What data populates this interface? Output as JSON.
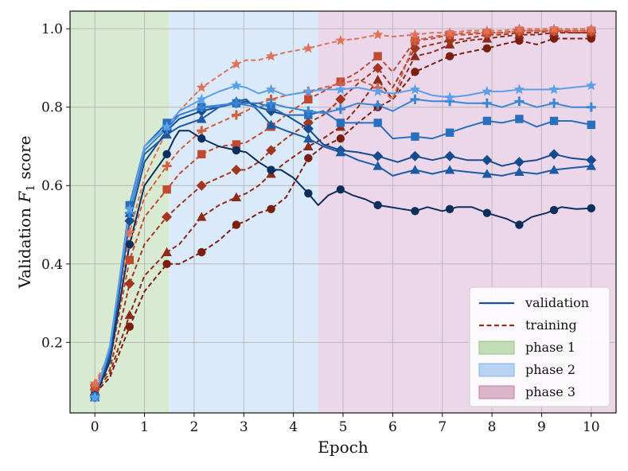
{
  "chart_data": {
    "type": "line",
    "xlabel": "Epoch",
    "ylabel_prefix": "Validation ",
    "ylabel_symbol": "F",
    "ylabel_subscript": "1",
    "ylabel_suffix": " score",
    "xlim": [
      -0.5,
      10.5
    ],
    "ylim": [
      0.02,
      1.045
    ],
    "xticks": [
      0,
      1,
      2,
      3,
      4,
      5,
      6,
      7,
      8,
      9,
      10
    ],
    "xtick_labels": [
      "0",
      "1",
      "2",
      "3",
      "4",
      "5",
      "6",
      "7",
      "8",
      "9",
      "10"
    ],
    "yticks": [
      0.2,
      0.4,
      0.6,
      0.8,
      1.0
    ],
    "ytick_labels": [
      "0.2",
      "0.4",
      "0.6",
      "0.8",
      "1.0"
    ],
    "grid": true,
    "legend_position": "lower-right",
    "phases": [
      {
        "label": "phase 1",
        "x_start": -0.5,
        "x_end": 1.5,
        "fill": "#d9ead3",
        "edge": "#93c47d"
      },
      {
        "label": "phase 2",
        "x_start": 1.5,
        "x_end": 4.5,
        "fill": "#dbeafb",
        "edge": "#6fa8dc"
      },
      {
        "label": "phase 3",
        "x_start": 4.5,
        "x_end": 10.5,
        "fill": "#ecd7ea",
        "edge": "#c27ba0"
      }
    ],
    "legend": [
      {
        "label": "validation",
        "style": "solid",
        "color": "#1f4e8c"
      },
      {
        "label": "training",
        "style": "dashed",
        "color": "#9c2f1f"
      },
      {
        "label": "phase 1",
        "style": "patch",
        "color": "#93c47d"
      },
      {
        "label": "phase 2",
        "style": "patch",
        "color": "#7fb3e8"
      },
      {
        "label": "phase 3",
        "style": "patch",
        "color": "#c27ba0"
      }
    ],
    "series": [
      {
        "kind": "validation",
        "marker": "circle",
        "color": "#0b2e5a",
        "x": [
          0,
          0.3,
          0.7,
          1.0,
          1.45,
          1.6,
          1.7,
          1.9,
          2.15,
          2.5,
          2.85,
          3.05,
          3.3,
          3.55,
          3.75,
          4.0,
          4.3,
          4.5,
          4.7,
          4.95,
          5.2,
          5.45,
          5.7,
          5.95,
          6.2,
          6.45,
          6.7,
          7.0,
          7.3,
          7.6,
          7.9,
          8.3,
          8.55,
          8.8,
          9.1,
          9.4,
          9.7,
          10.0
        ],
        "y": [
          0.06,
          0.15,
          0.45,
          0.6,
          0.68,
          0.72,
          0.74,
          0.74,
          0.72,
          0.7,
          0.69,
          0.685,
          0.66,
          0.64,
          0.64,
          0.62,
          0.58,
          0.55,
          0.575,
          0.59,
          0.575,
          0.565,
          0.55,
          0.545,
          0.54,
          0.535,
          0.545,
          0.535,
          0.545,
          0.545,
          0.53,
          0.515,
          0.5,
          0.52,
          0.53,
          0.545,
          0.54,
          0.542
        ],
        "marker_x": [
          0,
          0.7,
          1.45,
          2.15,
          2.85,
          3.55,
          4.3,
          4.95,
          5.7,
          6.45,
          7.15,
          7.9,
          8.55,
          9.25,
          10.0
        ]
      },
      {
        "kind": "validation",
        "marker": "diamond",
        "color": "#164c8f",
        "x": [
          0,
          0.3,
          0.7,
          1.0,
          1.45,
          1.7,
          2.15,
          2.5,
          2.85,
          3.05,
          3.3,
          3.55,
          3.85,
          4.3,
          4.6,
          4.95,
          5.3,
          5.7,
          6.1,
          6.45,
          6.8,
          7.15,
          7.5,
          7.9,
          8.2,
          8.55,
          8.9,
          9.25,
          9.6,
          10.0
        ],
        "y": [
          0.065,
          0.16,
          0.51,
          0.66,
          0.74,
          0.77,
          0.79,
          0.8,
          0.81,
          0.815,
          0.8,
          0.79,
          0.78,
          0.745,
          0.705,
          0.69,
          0.685,
          0.675,
          0.66,
          0.675,
          0.665,
          0.675,
          0.665,
          0.665,
          0.65,
          0.66,
          0.665,
          0.68,
          0.67,
          0.665
        ],
        "marker_x": [
          0,
          0.7,
          1.45,
          2.15,
          2.85,
          3.55,
          4.3,
          4.95,
          5.7,
          6.45,
          7.15,
          7.9,
          8.55,
          9.25,
          10.0
        ]
      },
      {
        "kind": "validation",
        "marker": "triangle",
        "color": "#1d5aa6",
        "x": [
          0,
          0.3,
          0.7,
          1.0,
          1.45,
          1.7,
          2.15,
          2.5,
          2.85,
          3.05,
          3.3,
          3.55,
          3.85,
          4.3,
          4.6,
          4.95,
          5.3,
          5.7,
          6.0,
          6.45,
          6.8,
          7.15,
          7.5,
          7.9,
          8.2,
          8.55,
          8.9,
          9.25,
          9.6,
          10.0
        ],
        "y": [
          0.06,
          0.17,
          0.53,
          0.68,
          0.73,
          0.75,
          0.77,
          0.8,
          0.815,
          0.82,
          0.79,
          0.755,
          0.74,
          0.72,
          0.7,
          0.685,
          0.665,
          0.65,
          0.625,
          0.64,
          0.63,
          0.64,
          0.635,
          0.63,
          0.625,
          0.635,
          0.63,
          0.64,
          0.645,
          0.65
        ],
        "marker_x": [
          0,
          0.7,
          1.45,
          2.15,
          2.85,
          3.55,
          4.3,
          4.95,
          5.7,
          6.45,
          7.15,
          7.9,
          8.55,
          9.25,
          10.0
        ]
      },
      {
        "kind": "validation",
        "marker": "square",
        "color": "#2a6ebe",
        "x": [
          0,
          0.3,
          0.7,
          1.0,
          1.45,
          1.7,
          2.15,
          2.5,
          2.85,
          3.05,
          3.3,
          3.55,
          3.85,
          4.3,
          4.6,
          4.95,
          5.3,
          5.7,
          6.0,
          6.45,
          6.8,
          7.15,
          7.5,
          7.9,
          8.2,
          8.55,
          8.9,
          9.25,
          9.6,
          10.0
        ],
        "y": [
          0.06,
          0.18,
          0.55,
          0.7,
          0.76,
          0.78,
          0.8,
          0.8,
          0.81,
          0.81,
          0.81,
          0.8,
          0.78,
          0.78,
          0.79,
          0.76,
          0.76,
          0.76,
          0.72,
          0.725,
          0.72,
          0.735,
          0.75,
          0.765,
          0.76,
          0.77,
          0.75,
          0.765,
          0.765,
          0.755
        ],
        "marker_x": [
          0,
          0.7,
          1.45,
          2.15,
          2.85,
          3.55,
          4.3,
          4.95,
          5.7,
          6.45,
          7.15,
          7.9,
          8.55,
          9.25,
          10.0
        ]
      },
      {
        "kind": "validation",
        "marker": "plus",
        "color": "#3a85d6",
        "x": [
          0,
          0.3,
          0.7,
          1.0,
          1.45,
          1.7,
          2.15,
          2.5,
          2.85,
          3.05,
          3.3,
          3.55,
          3.85,
          4.3,
          4.6,
          4.95,
          5.3,
          5.7,
          6.0,
          6.45,
          6.8,
          7.15,
          7.5,
          7.9,
          8.2,
          8.55,
          8.9,
          9.25,
          9.6,
          10.0
        ],
        "y": [
          0.06,
          0.18,
          0.53,
          0.69,
          0.745,
          0.78,
          0.8,
          0.805,
          0.81,
          0.805,
          0.8,
          0.81,
          0.8,
          0.79,
          0.785,
          0.795,
          0.81,
          0.805,
          0.79,
          0.82,
          0.815,
          0.815,
          0.81,
          0.81,
          0.8,
          0.815,
          0.8,
          0.81,
          0.8,
          0.8
        ],
        "marker_x": [
          0,
          0.7,
          1.45,
          2.15,
          2.85,
          3.55,
          4.3,
          4.95,
          5.7,
          6.45,
          7.15,
          7.9,
          8.55,
          9.25,
          10.0
        ]
      },
      {
        "kind": "validation",
        "marker": "star",
        "color": "#5a9fe8",
        "x": [
          0,
          0.3,
          0.7,
          1.0,
          1.45,
          1.7,
          2.15,
          2.5,
          2.85,
          3.05,
          3.3,
          3.55,
          3.85,
          4.3,
          4.6,
          4.95,
          5.3,
          5.7,
          6.0,
          6.45,
          6.8,
          7.15,
          7.5,
          7.9,
          8.2,
          8.55,
          8.9,
          9.25,
          9.6,
          10.0
        ],
        "y": [
          0.06,
          0.19,
          0.54,
          0.7,
          0.75,
          0.79,
          0.82,
          0.84,
          0.855,
          0.85,
          0.835,
          0.845,
          0.83,
          0.84,
          0.845,
          0.845,
          0.85,
          0.84,
          0.835,
          0.845,
          0.83,
          0.825,
          0.83,
          0.84,
          0.84,
          0.845,
          0.845,
          0.845,
          0.85,
          0.855
        ],
        "marker_x": [
          0,
          0.7,
          1.45,
          2.15,
          2.85,
          3.55,
          4.3,
          4.95,
          5.7,
          6.45,
          7.15,
          7.9,
          8.55,
          9.25,
          10.0
        ]
      },
      {
        "kind": "training",
        "marker": "circle",
        "color": "#7a1e10",
        "x": [
          0,
          0.3,
          0.7,
          1.0,
          1.45,
          1.7,
          2.15,
          2.5,
          2.85,
          3.05,
          3.3,
          3.55,
          3.85,
          4.3,
          4.6,
          4.95,
          5.3,
          5.7,
          6.0,
          6.45,
          6.8,
          7.15,
          7.5,
          7.9,
          8.2,
          8.55,
          8.9,
          9.25,
          9.6,
          10.0
        ],
        "y": [
          0.07,
          0.11,
          0.24,
          0.33,
          0.4,
          0.4,
          0.43,
          0.46,
          0.5,
          0.51,
          0.53,
          0.54,
          0.57,
          0.67,
          0.7,
          0.72,
          0.76,
          0.8,
          0.82,
          0.89,
          0.91,
          0.93,
          0.94,
          0.95,
          0.96,
          0.97,
          0.96,
          0.975,
          0.975,
          0.975
        ],
        "marker_x": [
          0,
          0.7,
          1.45,
          2.15,
          2.85,
          3.55,
          4.3,
          4.95,
          5.7,
          6.45,
          7.15,
          7.9,
          8.55,
          9.25,
          10.0
        ]
      },
      {
        "kind": "training",
        "marker": "triangle",
        "color": "#8e2a17",
        "x": [
          0,
          0.3,
          0.7,
          1.0,
          1.45,
          1.7,
          2.15,
          2.5,
          2.85,
          3.05,
          3.3,
          3.55,
          3.85,
          4.3,
          4.6,
          4.95,
          5.3,
          5.7,
          6.0,
          6.45,
          6.8,
          7.15,
          7.5,
          7.9,
          8.2,
          8.55,
          8.9,
          9.25,
          9.6,
          10.0
        ],
        "y": [
          0.075,
          0.12,
          0.27,
          0.37,
          0.43,
          0.45,
          0.52,
          0.55,
          0.57,
          0.58,
          0.6,
          0.63,
          0.66,
          0.7,
          0.72,
          0.75,
          0.8,
          0.87,
          0.82,
          0.93,
          0.94,
          0.96,
          0.97,
          0.975,
          0.98,
          0.985,
          0.985,
          0.99,
          0.99,
          0.99
        ],
        "marker_x": [
          0,
          0.7,
          1.45,
          2.15,
          2.85,
          3.55,
          4.3,
          4.95,
          5.7,
          6.45,
          7.15,
          7.9,
          8.55,
          9.25,
          10.0
        ]
      },
      {
        "kind": "training",
        "marker": "diamond",
        "color": "#a3361f",
        "x": [
          0,
          0.3,
          0.7,
          1.0,
          1.45,
          1.7,
          2.15,
          2.5,
          2.85,
          3.05,
          3.3,
          3.55,
          3.85,
          4.3,
          4.6,
          4.95,
          5.3,
          5.7,
          6.0,
          6.45,
          6.8,
          7.15,
          7.5,
          7.9,
          8.2,
          8.55,
          8.9,
          9.25,
          9.6,
          10.0
        ],
        "y": [
          0.08,
          0.13,
          0.35,
          0.45,
          0.52,
          0.55,
          0.6,
          0.62,
          0.64,
          0.64,
          0.66,
          0.69,
          0.72,
          0.76,
          0.78,
          0.82,
          0.86,
          0.9,
          0.85,
          0.95,
          0.96,
          0.97,
          0.975,
          0.985,
          0.985,
          0.99,
          0.99,
          0.995,
          0.99,
          0.99
        ],
        "marker_x": [
          0,
          0.7,
          1.45,
          2.15,
          2.85,
          3.55,
          4.3,
          4.95,
          5.7,
          6.45,
          7.15,
          7.9,
          8.55,
          9.25,
          10.0
        ]
      },
      {
        "kind": "training",
        "marker": "square",
        "color": "#bf4a30",
        "x": [
          0,
          0.3,
          0.7,
          1.0,
          1.45,
          1.7,
          2.15,
          2.5,
          2.85,
          3.05,
          3.3,
          3.55,
          3.85,
          4.3,
          4.6,
          4.95,
          5.3,
          5.7,
          6.0,
          6.45,
          6.8,
          7.15,
          7.5,
          7.9,
          8.2,
          8.55,
          8.9,
          9.25,
          9.6,
          10.0
        ],
        "y": [
          0.085,
          0.15,
          0.41,
          0.52,
          0.59,
          0.63,
          0.68,
          0.7,
          0.705,
          0.71,
          0.73,
          0.75,
          0.78,
          0.82,
          0.84,
          0.865,
          0.89,
          0.93,
          0.89,
          0.97,
          0.975,
          0.985,
          0.985,
          0.99,
          0.99,
          0.995,
          0.995,
          0.995,
          0.995,
          0.995
        ],
        "marker_x": [
          0,
          0.7,
          1.45,
          2.15,
          2.85,
          3.55,
          4.3,
          4.95,
          5.7,
          6.45,
          7.15,
          7.9,
          8.55,
          9.25,
          10.0
        ]
      },
      {
        "kind": "training",
        "marker": "plus",
        "color": "#d45f3e",
        "x": [
          0,
          0.3,
          0.7,
          1.0,
          1.45,
          1.7,
          2.15,
          2.5,
          2.85,
          3.05,
          3.3,
          3.55,
          3.85,
          4.3,
          4.6,
          4.95,
          5.3,
          5.7,
          6.0,
          6.45,
          6.8,
          7.15,
          7.5,
          7.9,
          8.2,
          8.55,
          8.9,
          9.25,
          9.6,
          10.0
        ],
        "y": [
          0.09,
          0.16,
          0.45,
          0.57,
          0.65,
          0.69,
          0.74,
          0.76,
          0.78,
          0.79,
          0.81,
          0.82,
          0.83,
          0.84,
          0.85,
          0.86,
          0.87,
          0.85,
          0.82,
          0.97,
          0.98,
          0.985,
          0.99,
          0.99,
          0.99,
          0.995,
          0.995,
          0.995,
          0.995,
          0.995
        ],
        "marker_x": [
          0,
          0.7,
          1.45,
          2.15,
          2.85,
          3.55,
          4.3,
          4.95,
          5.7,
          6.45,
          7.15,
          7.9,
          8.55,
          9.25,
          10.0
        ]
      },
      {
        "kind": "training",
        "marker": "star",
        "color": "#e0725a",
        "x": [
          0,
          0.3,
          0.7,
          1.0,
          1.45,
          1.7,
          2.15,
          2.5,
          2.85,
          3.05,
          3.3,
          3.55,
          3.85,
          4.3,
          4.6,
          4.95,
          5.3,
          5.7,
          6.0,
          6.45,
          6.8,
          7.15,
          7.5,
          7.9,
          8.2,
          8.55,
          8.9,
          9.25,
          9.6,
          10.0
        ],
        "y": [
          0.095,
          0.17,
          0.48,
          0.62,
          0.74,
          0.79,
          0.85,
          0.88,
          0.91,
          0.92,
          0.92,
          0.93,
          0.94,
          0.95,
          0.96,
          0.97,
          0.975,
          0.985,
          0.98,
          0.985,
          0.99,
          0.99,
          0.995,
          0.995,
          0.995,
          1.0,
          1.0,
          1.0,
          1.0,
          1.0
        ],
        "marker_x": [
          0,
          0.7,
          1.45,
          2.15,
          2.85,
          3.55,
          4.3,
          4.95,
          5.7,
          6.45,
          7.15,
          7.9,
          8.55,
          9.25,
          10.0
        ]
      }
    ]
  }
}
